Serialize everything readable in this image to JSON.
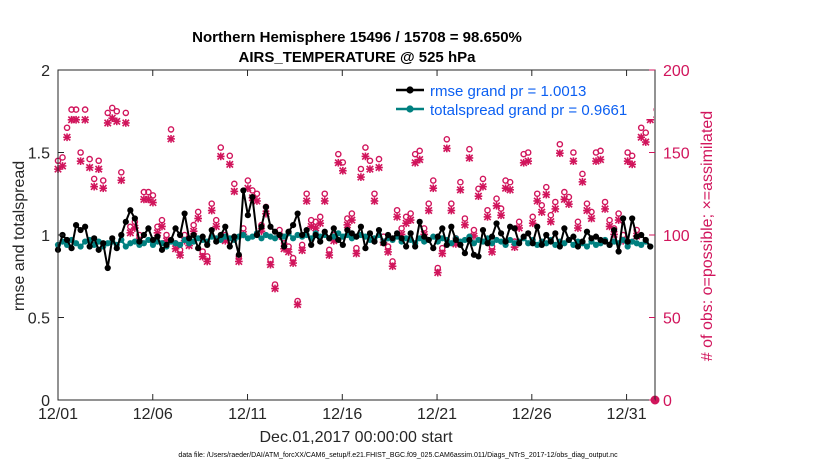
{
  "chart_data": {
    "type": "line",
    "title": "Northern Hemisphere 15496 / 15708 = 98.650%",
    "subtitle": "AIRS_TEMPERATURE @ 525 hPa",
    "xlabel": "Dec.01,2017 00:00:00 start",
    "ylabel": "rmse and totalspread",
    "ylabel_right": "# of obs: o=possible; ×=assimilated",
    "xlim": [
      0,
      31.5
    ],
    "ylim": [
      0,
      2
    ],
    "ylim_right": [
      0,
      200
    ],
    "xticks": [
      0,
      5,
      10,
      15,
      20,
      25,
      30
    ],
    "xtick_labels": [
      "12/01",
      "12/06",
      "12/11",
      "12/16",
      "12/21",
      "12/26",
      "12/31"
    ],
    "yticks": [
      0,
      0.5,
      1,
      1.5,
      2
    ],
    "ytick_labels": [
      "0",
      "0.5",
      "1",
      "1.5",
      "2"
    ],
    "yticks_right": [
      0,
      50,
      100,
      150,
      200
    ],
    "ytick_labels_right": [
      "0",
      "50",
      "100",
      "150",
      "200"
    ],
    "legend_placement": "top-right",
    "footer": "data file: /Users/raeder/DAI/ATM_forcXX/CAM6_setup/f.e21.FHIST_BGC.f09_025.CAM6assim.011/Diags_NTrS_2017-12/obs_diag_output.nc",
    "colors": {
      "rmse": "#000000",
      "spread": "#008080",
      "obs": "#d1155c",
      "legend_text": "#0b5ff2"
    },
    "series": [
      {
        "name": "rmse grand pr = 1.0013",
        "color": "#000000",
        "values": [
          0.91,
          1.0,
          0.97,
          0.92,
          1.06,
          1.03,
          1.05,
          0.93,
          0.98,
          0.91,
          0.95,
          0.8,
          0.98,
          0.92,
          1.0,
          1.08,
          1.15,
          1.1,
          0.96,
          1.0,
          1.04,
          0.97,
          0.99,
          0.91,
          0.94,
          0.97,
          1.04,
          1.0,
          1.13,
          0.98,
          1.0,
          0.92,
          0.99,
          0.94,
          1.03,
          0.96,
          1.0,
          1.05,
          0.93,
          0.99,
          0.88,
          1.27,
          1.12,
          1.23,
          1.0,
          1.05,
          1.17,
          1.05,
          1.02,
          1.0,
          0.93,
          1.02,
          1.06,
          1.13,
          1.0,
          1.03,
          0.94,
          1.0,
          0.96,
          1.02,
          0.98,
          1.04,
          0.97,
          0.94,
          1.03,
          1.01,
          0.99,
          1.05,
          0.92,
          1.01,
          0.96,
          1.03,
          0.95,
          1.0,
          0.98,
          1.01,
          0.98,
          0.93,
          1.01,
          0.93,
          1.08,
          0.99,
          0.97,
          0.92,
          0.99,
          1.04,
          0.94,
          1.05,
          0.97,
          0.94,
          0.89,
          0.97,
          0.88,
          0.87,
          1.03,
          0.95,
          0.99,
          1.07,
          1.01,
          0.96,
          1.05,
          1.04,
          0.95,
          0.99,
          1.01,
          0.95,
          1.05,
          0.94,
          1.0,
          0.96,
          1.01,
          0.93,
          1.04,
          0.97,
          0.99,
          0.93,
          0.96,
          1.02,
          0.98,
          0.99,
          0.97,
          0.96,
          0.94,
          1.03,
          0.9,
          1.1,
          0.96,
          1.1,
          0.99,
          1.0,
          0.97,
          0.93
        ]
      },
      {
        "name": "totalspread grand pr = 0.9661",
        "color": "#008080",
        "values": [
          0.94,
          0.96,
          0.94,
          0.97,
          0.95,
          0.93,
          0.96,
          0.97,
          0.94,
          0.96,
          0.93,
          0.95,
          0.96,
          0.94,
          0.97,
          0.93,
          0.95,
          0.96,
          0.94,
          0.95,
          0.97,
          0.94,
          0.96,
          0.95,
          0.93,
          0.96,
          0.95,
          0.94,
          0.97,
          0.95,
          0.96,
          0.98,
          0.97,
          0.96,
          0.99,
          0.98,
          0.97,
          0.99,
          0.98,
          0.97,
          0.99,
          1.0,
          0.98,
          0.99,
          1.01,
          0.98,
          1.0,
          0.99,
          0.98,
          1.0,
          0.99,
          1.01,
          0.98,
          1.0,
          0.99,
          1.0,
          0.98,
          1.01,
          0.99,
          1.0,
          0.98,
          0.99,
          1.01,
          0.99,
          1.0,
          0.98,
          0.99,
          1.0,
          0.99,
          0.97,
          0.98,
          1.0,
          0.96,
          0.98,
          0.97,
          0.99,
          0.96,
          0.98,
          0.97,
          0.95,
          0.98,
          0.96,
          0.97,
          0.99,
          0.96,
          0.98,
          0.97,
          0.95,
          0.98,
          0.96,
          0.97,
          0.99,
          0.95,
          0.97,
          0.96,
          0.98,
          0.95,
          0.97,
          0.96,
          0.94,
          0.97,
          0.95,
          0.96,
          0.98,
          0.95,
          0.97,
          0.94,
          0.96,
          0.95,
          0.97,
          0.94,
          0.96,
          0.95,
          0.97,
          0.94,
          0.96,
          0.95,
          0.93,
          0.96,
          0.94,
          0.95,
          0.97,
          0.94,
          0.96,
          0.95,
          0.97,
          0.93,
          0.96,
          0.95,
          0.94,
          0.96,
          0.93
        ]
      }
    ],
    "obs": {
      "name": "# of obs",
      "possible": [
        145,
        147,
        165,
        176,
        176,
        150,
        176,
        146,
        134,
        145,
        133,
        174,
        177,
        175,
        138,
        174,
        105,
        108,
        100,
        126,
        126,
        124,
        105,
        109,
        100,
        164,
        95,
        91,
        100,
        97,
        106,
        114,
        90,
        87,
        119,
        109,
        153,
        100,
        148,
        131,
        87,
        104,
        133,
        127,
        125,
        106,
        117,
        85,
        70,
        103,
        95,
        93,
        86,
        60,
        94,
        125,
        109,
        108,
        111,
        125,
        91,
        100,
        149,
        144,
        110,
        113,
        92,
        140,
        153,
        145,
        125,
        146,
        99,
        93,
        84,
        115,
        104,
        111,
        113,
        149,
        151,
        104,
        119,
        133,
        80,
        92,
        158,
        119,
        98,
        132,
        110,
        152,
        103,
        128,
        134,
        115,
        93,
        122,
        116,
        133,
        132,
        96,
        108,
        149,
        150,
        111,
        125,
        118,
        129,
        112,
        120,
        155,
        126,
        123,
        150,
        108,
        137,
        119,
        114,
        150,
        151,
        120,
        109,
        104,
        113,
        100,
        150,
        148,
        103,
        165,
        162,
        176
      ]
    }
  }
}
